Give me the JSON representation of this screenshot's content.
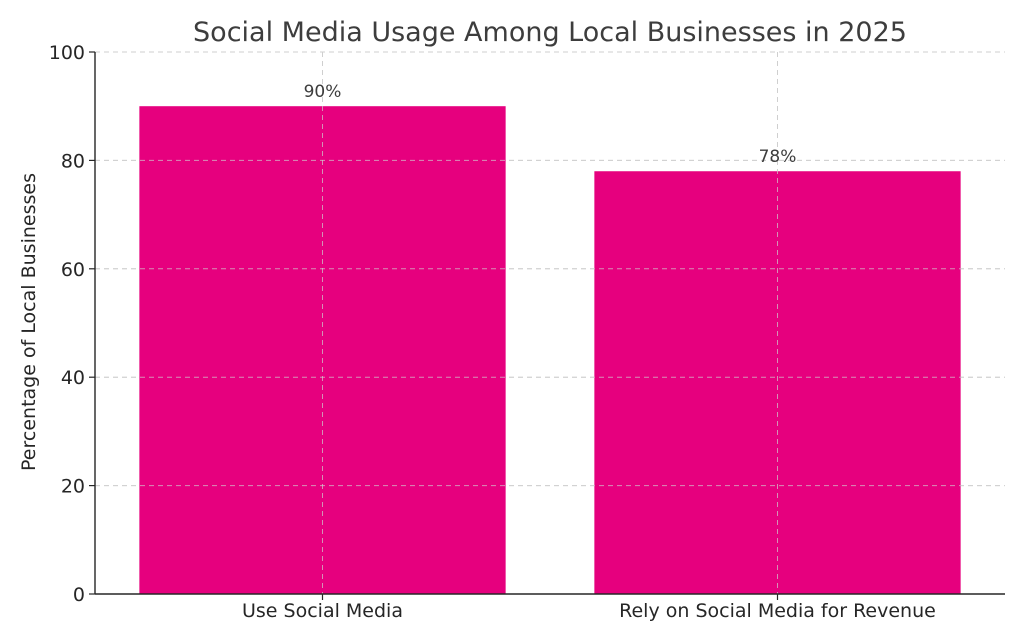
{
  "chart_data": {
    "type": "bar",
    "title": "Social Media Usage Among Local Businesses in 2025",
    "xlabel": "",
    "ylabel": "Percentage of Local Businesses",
    "categories": [
      "Use Social Media",
      "Rely on Social Media for Revenue"
    ],
    "values": [
      90,
      78
    ],
    "data_labels": [
      "90%",
      "78%"
    ],
    "ylim": [
      0,
      100
    ],
    "yticks": [
      0,
      20,
      40,
      60,
      80,
      100
    ],
    "grid": true,
    "bar_color": "#e6007e"
  }
}
